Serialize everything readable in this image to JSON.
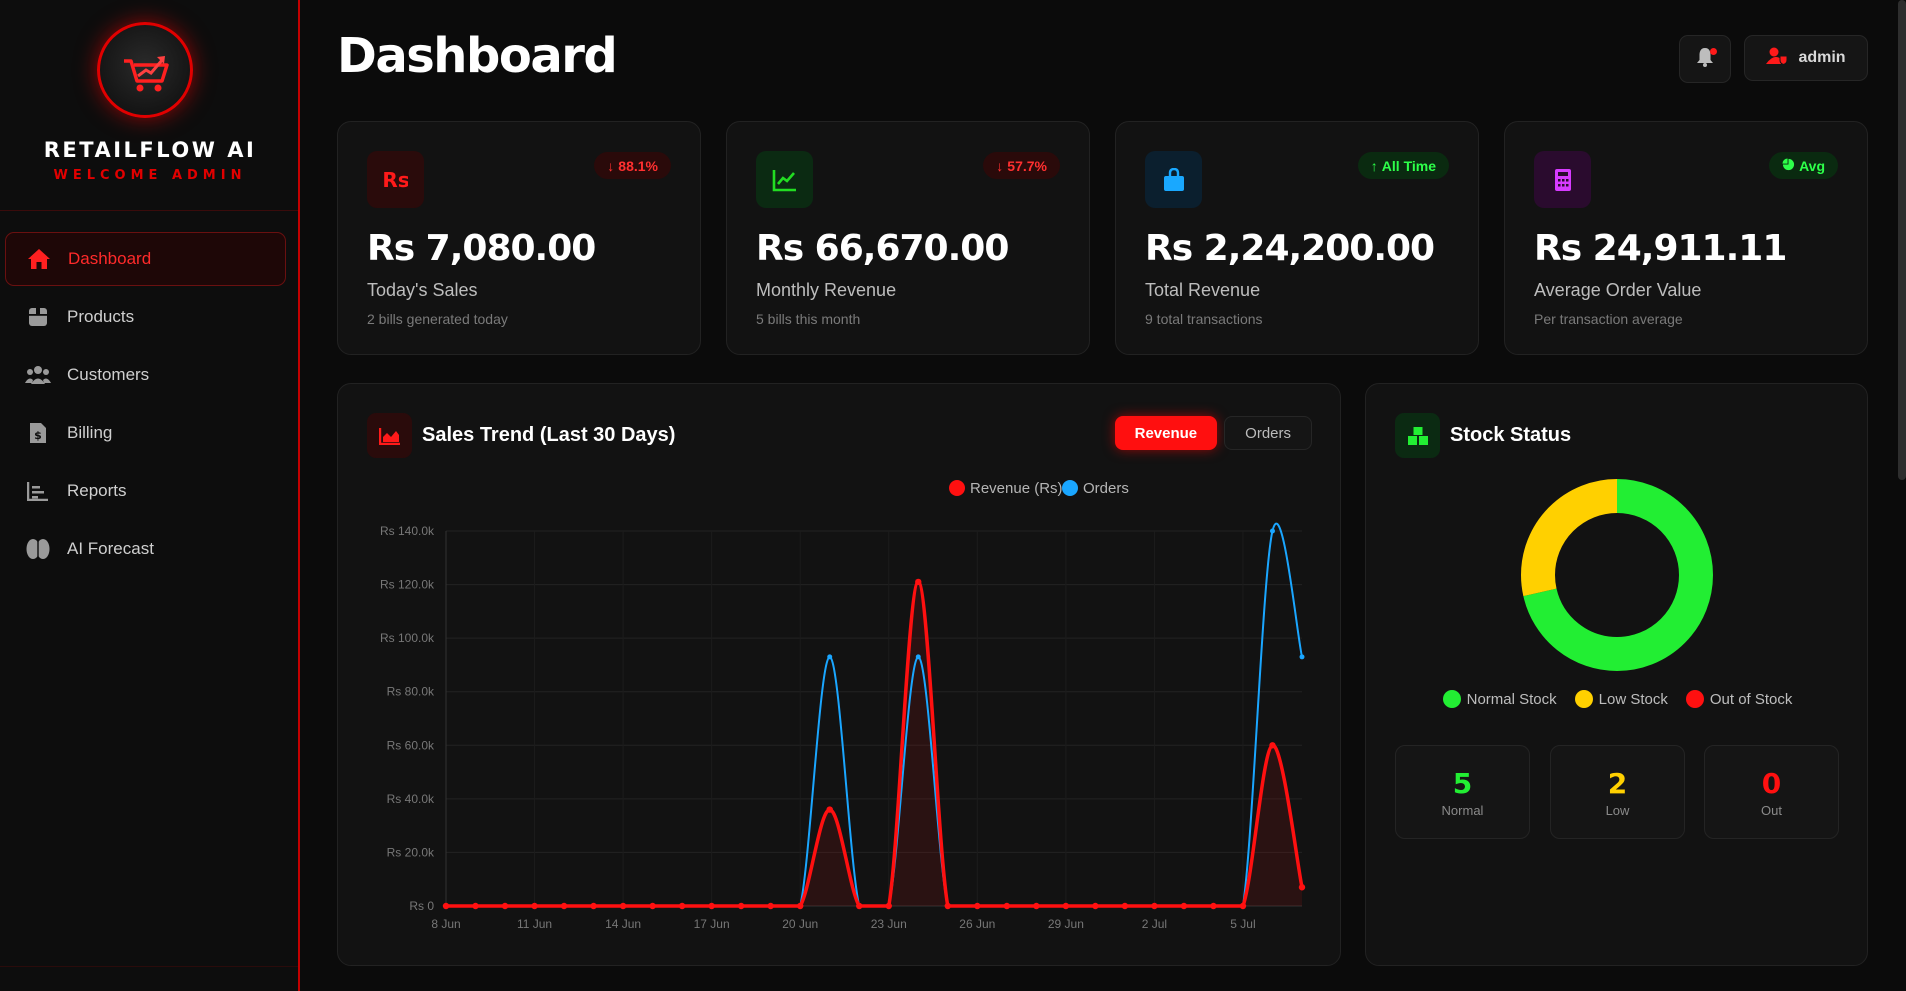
{
  "brand": {
    "name": "RETAILFLOW AI",
    "subtitle": "WELCOME ADMIN"
  },
  "sidebar": {
    "items": [
      {
        "label": "Dashboard",
        "icon": "home-icon",
        "active": true
      },
      {
        "label": "Products",
        "icon": "box-icon",
        "active": false
      },
      {
        "label": "Customers",
        "icon": "users-icon",
        "active": false
      },
      {
        "label": "Billing",
        "icon": "invoice-icon",
        "active": false
      },
      {
        "label": "Reports",
        "icon": "chart-icon",
        "active": false
      },
      {
        "label": "AI Forecast",
        "icon": "brain-icon",
        "active": false
      }
    ]
  },
  "header": {
    "title": "Dashboard",
    "user": "admin",
    "notification_icon": "bell-icon",
    "user_icon": "user-shield-icon"
  },
  "stats": [
    {
      "value": "Rs 7,080.00",
      "label": "Today's Sales",
      "sub": "2 bills generated today",
      "badge": "88.1%",
      "badge_icon": "arrow-down-icon",
      "icon": "rupee-icon",
      "accent": "#ff1a1a"
    },
    {
      "value": "Rs 66,670.00",
      "label": "Monthly Revenue",
      "sub": "5 bills this month",
      "badge": "57.7%",
      "badge_icon": "arrow-down-icon",
      "icon": "trend-line-icon",
      "accent": "#22dd22"
    },
    {
      "value": "Rs 2,24,200.00",
      "label": "Total Revenue",
      "sub": "9 total transactions",
      "badge": "All Time",
      "badge_icon": "arrow-up-icon",
      "icon": "shopping-bag-icon",
      "accent": "#19a8ff"
    },
    {
      "value": "Rs 24,911.11",
      "label": "Average Order Value",
      "sub": "Per transaction average",
      "badge": "Avg",
      "badge_icon": "pie-icon",
      "icon": "calculator-icon",
      "accent": "#d63bff"
    }
  ],
  "trend": {
    "title": "Sales Trend (Last 30 Days)",
    "toggles": [
      "Revenue",
      "Orders"
    ],
    "active_toggle": "Revenue"
  },
  "chart_data": {
    "type": "line",
    "x": [
      "8 Jun",
      "9 Jun",
      "10 Jun",
      "11 Jun",
      "12 Jun",
      "13 Jun",
      "14 Jun",
      "15 Jun",
      "16 Jun",
      "17 Jun",
      "18 Jun",
      "19 Jun",
      "20 Jun",
      "21 Jun",
      "22 Jun",
      "23 Jun",
      "24 Jun",
      "25 Jun",
      "26 Jun",
      "27 Jun",
      "28 Jun",
      "29 Jun",
      "30 Jun",
      "1 Jul",
      "2 Jul",
      "3 Jul",
      "4 Jul",
      "5 Jul",
      "6 Jul",
      "7 Jul"
    ],
    "x_tick_labels": [
      "8 Jun",
      "11 Jun",
      "14 Jun",
      "17 Jun",
      "20 Jun",
      "23 Jun",
      "26 Jun",
      "29 Jun",
      "2 Jul",
      "5 Jul"
    ],
    "y_tick_labels": [
      "Rs 0",
      "Rs 20.0k",
      "Rs 40.0k",
      "Rs 60.0k",
      "Rs 80.0k",
      "Rs 100.0k",
      "Rs 120.0k",
      "Rs 140.0k"
    ],
    "ylim": [
      0,
      140000
    ],
    "series": [
      {
        "name": "Revenue (Rs)",
        "color": "#ff1010",
        "values": [
          0,
          0,
          0,
          0,
          0,
          0,
          0,
          0,
          0,
          0,
          0,
          0,
          0,
          36000,
          0,
          0,
          121000,
          0,
          0,
          0,
          0,
          0,
          0,
          0,
          0,
          0,
          0,
          0,
          60000,
          7000
        ]
      },
      {
        "name": "Orders",
        "color": "#1aa6ff",
        "values": [
          0,
          0,
          0,
          0,
          0,
          0,
          0,
          0,
          0,
          0,
          0,
          0,
          0,
          93000,
          0,
          0,
          93000,
          0,
          0,
          0,
          0,
          0,
          0,
          0,
          0,
          0,
          0,
          0,
          140000,
          93000
        ]
      }
    ],
    "legend": "top-right",
    "grid": true
  },
  "stock": {
    "title": "Stock Status",
    "legend": [
      {
        "label": "Normal Stock",
        "color": "#22ee33"
      },
      {
        "label": "Low Stock",
        "color": "#ffd000"
      },
      {
        "label": "Out of Stock",
        "color": "#ff1010"
      }
    ],
    "donut": [
      {
        "name": "Normal Stock",
        "value": 5,
        "color": "#22ee33"
      },
      {
        "name": "Low Stock",
        "value": 2,
        "color": "#ffd000"
      },
      {
        "name": "Out of Stock",
        "value": 0,
        "color": "#ff1010"
      }
    ],
    "counts": [
      {
        "value": "5",
        "label": "Normal",
        "color": "#22ee33"
      },
      {
        "value": "2",
        "label": "Low",
        "color": "#ffd000"
      },
      {
        "value": "0",
        "label": "Out",
        "color": "#ff1010"
      }
    ]
  }
}
